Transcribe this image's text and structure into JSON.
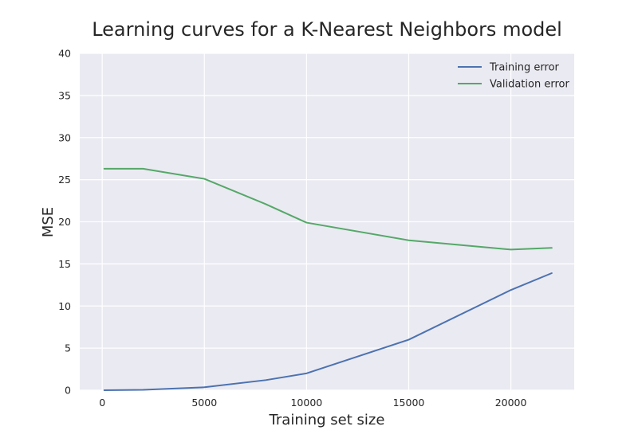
{
  "chart_data": {
    "type": "line",
    "title": "Learning curves for a K-Nearest Neighbors model",
    "xlabel": "Training set size",
    "ylabel": "MSE",
    "xlim": [
      -1100,
      23100
    ],
    "ylim": [
      0,
      40
    ],
    "xticks": [
      0,
      5000,
      10000,
      15000,
      20000
    ],
    "yticks": [
      0,
      5,
      10,
      15,
      20,
      25,
      30,
      35,
      40
    ],
    "grid": true,
    "legend_position": "top-right",
    "x": [
      100,
      2000,
      5000,
      8000,
      10000,
      15000,
      20000,
      22000
    ],
    "series": [
      {
        "name": "Training error",
        "color": "#4c72b0",
        "values": [
          0.0,
          0.05,
          0.35,
          1.2,
          2.0,
          6.0,
          11.9,
          13.9
        ]
      },
      {
        "name": "Validation error",
        "color": "#55a868",
        "values": [
          26.3,
          26.3,
          25.1,
          22.1,
          19.9,
          17.8,
          16.7,
          16.9
        ]
      }
    ]
  }
}
